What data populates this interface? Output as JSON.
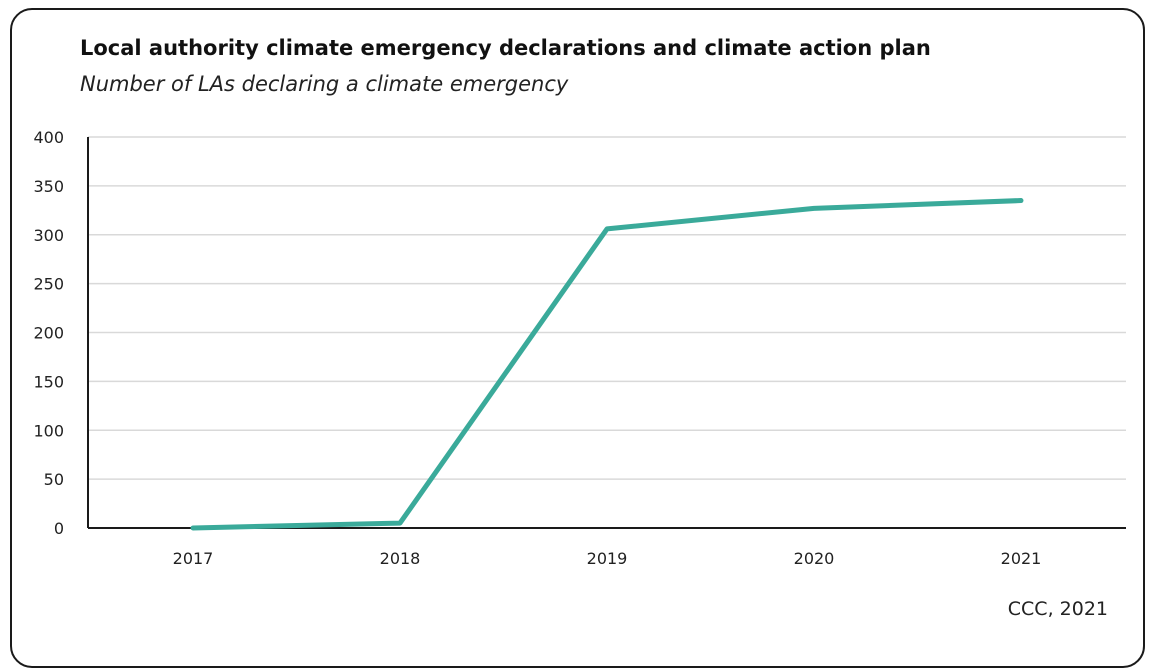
{
  "header": {
    "title": "Local authority climate emergency declarations and climate action plan",
    "subtitle": "Number of LAs declaring a climate emergency"
  },
  "footer": {
    "source": "CCC, 2021"
  },
  "colors": {
    "line": "#3aaa9a",
    "grid": "#d9d9d9",
    "axis": "#1a1a1a"
  },
  "chart_data": {
    "type": "line",
    "title": "Local authority climate emergency declarations and climate action plan",
    "subtitle": "Number of LAs declaring a climate emergency",
    "xlabel": "",
    "ylabel": "",
    "x": [
      "2017",
      "2018",
      "2019",
      "2020",
      "2021"
    ],
    "series": [
      {
        "values": [
          0,
          5,
          306,
          327,
          335
        ]
      }
    ],
    "ylim": [
      0,
      400
    ],
    "yticks": [
      0,
      50,
      100,
      150,
      200,
      250,
      300,
      350,
      400
    ],
    "grid": true,
    "legend": "none",
    "source": "CCC, 2021"
  }
}
